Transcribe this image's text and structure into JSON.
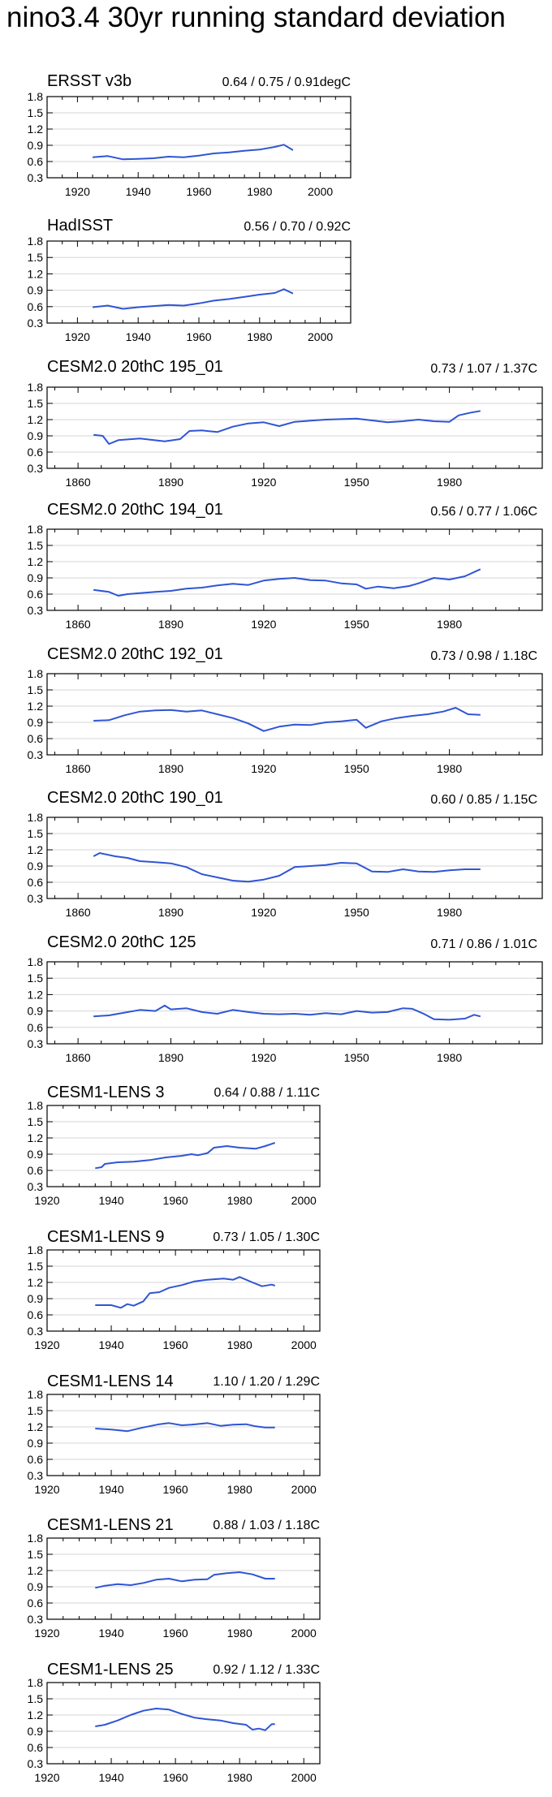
{
  "title": "nino3.4 30yr running standard deviation",
  "chart_data": [
    {
      "type": "line",
      "title": "ERSST v3b",
      "stats": "0.64 / 0.75 / 0.91degC",
      "xlim": [
        1910,
        2010
      ],
      "ylim": [
        0.3,
        1.8
      ],
      "xticks": [
        1920,
        1940,
        1960,
        1980,
        2000
      ],
      "yticks": [
        0.3,
        0.6,
        0.9,
        1.2,
        1.5,
        1.8
      ],
      "color": "#2f55d4",
      "x": [
        1925,
        1930,
        1935,
        1940,
        1945,
        1950,
        1955,
        1960,
        1965,
        1970,
        1975,
        1980,
        1985,
        1988,
        1991
      ],
      "y": [
        0.68,
        0.7,
        0.64,
        0.65,
        0.66,
        0.69,
        0.68,
        0.71,
        0.75,
        0.77,
        0.8,
        0.82,
        0.87,
        0.91,
        0.81
      ]
    },
    {
      "type": "line",
      "title": "HadISST",
      "stats": "0.56 / 0.70 / 0.92C",
      "xlim": [
        1910,
        2010
      ],
      "ylim": [
        0.3,
        1.8
      ],
      "xticks": [
        1920,
        1940,
        1960,
        1980,
        2000
      ],
      "yticks": [
        0.3,
        0.6,
        0.9,
        1.2,
        1.5,
        1.8
      ],
      "color": "#2f55d4",
      "x": [
        1925,
        1930,
        1935,
        1940,
        1945,
        1950,
        1955,
        1960,
        1965,
        1970,
        1975,
        1980,
        1985,
        1988,
        1991
      ],
      "y": [
        0.59,
        0.62,
        0.56,
        0.59,
        0.61,
        0.63,
        0.62,
        0.66,
        0.71,
        0.74,
        0.78,
        0.82,
        0.85,
        0.92,
        0.84
      ]
    },
    {
      "type": "line",
      "title": "CESM2.0 20thC 195_01",
      "stats": "0.73 / 1.07 / 1.37C",
      "xlim": [
        1850,
        2010
      ],
      "ylim": [
        0.3,
        1.8
      ],
      "xticks": [
        1860,
        1890,
        1920,
        1950,
        1980
      ],
      "yticks": [
        0.3,
        0.6,
        0.9,
        1.2,
        1.5,
        1.8
      ],
      "color": "#2f55d4",
      "x": [
        1865,
        1868,
        1870,
        1873,
        1880,
        1888,
        1893,
        1896,
        1900,
        1905,
        1910,
        1915,
        1920,
        1925,
        1930,
        1940,
        1950,
        1960,
        1965,
        1970,
        1975,
        1980,
        1983,
        1987,
        1990
      ],
      "y": [
        0.92,
        0.9,
        0.75,
        0.82,
        0.85,
        0.8,
        0.84,
        0.99,
        1.0,
        0.97,
        1.07,
        1.13,
        1.15,
        1.08,
        1.16,
        1.2,
        1.22,
        1.15,
        1.17,
        1.2,
        1.17,
        1.16,
        1.28,
        1.33,
        1.36
      ]
    },
    {
      "type": "line",
      "title": "CESM2.0 20thC 194_01",
      "stats": "0.56 / 0.77 / 1.06C",
      "xlim": [
        1850,
        2010
      ],
      "ylim": [
        0.3,
        1.8
      ],
      "xticks": [
        1860,
        1890,
        1920,
        1950,
        1980
      ],
      "yticks": [
        0.3,
        0.6,
        0.9,
        1.2,
        1.5,
        1.8
      ],
      "color": "#2f55d4",
      "x": [
        1865,
        1870,
        1873,
        1876,
        1880,
        1885,
        1890,
        1895,
        1900,
        1905,
        1910,
        1915,
        1920,
        1925,
        1930,
        1935,
        1940,
        1945,
        1950,
        1953,
        1957,
        1962,
        1967,
        1970,
        1975,
        1980,
        1985,
        1990
      ],
      "y": [
        0.68,
        0.64,
        0.57,
        0.6,
        0.62,
        0.64,
        0.66,
        0.7,
        0.72,
        0.76,
        0.79,
        0.77,
        0.85,
        0.88,
        0.9,
        0.86,
        0.85,
        0.8,
        0.78,
        0.7,
        0.74,
        0.71,
        0.75,
        0.8,
        0.9,
        0.87,
        0.93,
        1.06
      ]
    },
    {
      "type": "line",
      "title": "CESM2.0 20thC 192_01",
      "stats": "0.73 / 0.98 / 1.18C",
      "xlim": [
        1850,
        2010
      ],
      "ylim": [
        0.3,
        1.8
      ],
      "xticks": [
        1860,
        1890,
        1920,
        1950,
        1980
      ],
      "yticks": [
        0.3,
        0.6,
        0.9,
        1.2,
        1.5,
        1.8
      ],
      "color": "#2f55d4",
      "x": [
        1865,
        1870,
        1875,
        1880,
        1885,
        1890,
        1895,
        1900,
        1905,
        1910,
        1915,
        1920,
        1925,
        1930,
        1935,
        1940,
        1945,
        1950,
        1953,
        1958,
        1963,
        1968,
        1973,
        1978,
        1982,
        1986,
        1990
      ],
      "y": [
        0.93,
        0.94,
        1.03,
        1.1,
        1.12,
        1.13,
        1.1,
        1.12,
        1.05,
        0.98,
        0.88,
        0.74,
        0.82,
        0.86,
        0.85,
        0.9,
        0.92,
        0.95,
        0.8,
        0.92,
        0.98,
        1.02,
        1.05,
        1.1,
        1.17,
        1.05,
        1.04
      ]
    },
    {
      "type": "line",
      "title": "CESM2.0 20thC 190_01",
      "stats": "0.60 / 0.85 / 1.15C",
      "xlim": [
        1850,
        2010
      ],
      "ylim": [
        0.3,
        1.8
      ],
      "xticks": [
        1860,
        1890,
        1920,
        1950,
        1980
      ],
      "yticks": [
        0.3,
        0.6,
        0.9,
        1.2,
        1.5,
        1.8
      ],
      "color": "#2f55d4",
      "x": [
        1865,
        1867,
        1872,
        1876,
        1880,
        1885,
        1890,
        1895,
        1900,
        1905,
        1910,
        1915,
        1920,
        1925,
        1930,
        1935,
        1940,
        1945,
        1950,
        1955,
        1960,
        1965,
        1970,
        1975,
        1980,
        1985,
        1990
      ],
      "y": [
        1.08,
        1.14,
        1.08,
        1.05,
        0.99,
        0.97,
        0.95,
        0.88,
        0.75,
        0.69,
        0.63,
        0.61,
        0.65,
        0.72,
        0.88,
        0.9,
        0.92,
        0.96,
        0.95,
        0.8,
        0.79,
        0.84,
        0.8,
        0.79,
        0.82,
        0.84,
        0.84
      ]
    },
    {
      "type": "line",
      "title": "CESM2.0 20thC 125",
      "stats": "0.71 / 0.86 / 1.01C",
      "xlim": [
        1850,
        2010
      ],
      "ylim": [
        0.3,
        1.8
      ],
      "xticks": [
        1860,
        1890,
        1920,
        1950,
        1980
      ],
      "yticks": [
        0.3,
        0.6,
        0.9,
        1.2,
        1.5,
        1.8
      ],
      "color": "#2f55d4",
      "x": [
        1865,
        1870,
        1875,
        1880,
        1885,
        1888,
        1890,
        1895,
        1900,
        1905,
        1910,
        1915,
        1920,
        1925,
        1930,
        1935,
        1940,
        1945,
        1950,
        1955,
        1960,
        1965,
        1968,
        1972,
        1975,
        1980,
        1985,
        1988,
        1990
      ],
      "y": [
        0.8,
        0.82,
        0.87,
        0.92,
        0.9,
        1.0,
        0.93,
        0.95,
        0.88,
        0.85,
        0.92,
        0.88,
        0.85,
        0.84,
        0.85,
        0.83,
        0.86,
        0.84,
        0.9,
        0.87,
        0.88,
        0.95,
        0.94,
        0.84,
        0.75,
        0.74,
        0.76,
        0.83,
        0.8
      ]
    },
    {
      "type": "line",
      "title": "CESM1-LENS 3",
      "stats": "0.64 / 0.88 / 1.11C",
      "xlim": [
        1920,
        2005
      ],
      "ylim": [
        0.3,
        1.8
      ],
      "xticks": [
        1920,
        1940,
        1960,
        1980,
        2000
      ],
      "yticks": [
        0.3,
        0.6,
        0.9,
        1.2,
        1.5,
        1.8
      ],
      "color": "#2f55d4",
      "x": [
        1935,
        1937,
        1938,
        1942,
        1947,
        1952,
        1957,
        1962,
        1965,
        1967,
        1970,
        1972,
        1976,
        1980,
        1985,
        1988,
        1990,
        1991
      ],
      "y": [
        0.64,
        0.66,
        0.72,
        0.75,
        0.76,
        0.79,
        0.84,
        0.87,
        0.9,
        0.88,
        0.92,
        1.02,
        1.05,
        1.02,
        1.0,
        1.05,
        1.09,
        1.11
      ]
    },
    {
      "type": "line",
      "title": "CESM1-LENS 9",
      "stats": "0.73 / 1.05 / 1.30C",
      "xlim": [
        1920,
        2005
      ],
      "ylim": [
        0.3,
        1.8
      ],
      "xticks": [
        1920,
        1940,
        1960,
        1980,
        2000
      ],
      "yticks": [
        0.3,
        0.6,
        0.9,
        1.2,
        1.5,
        1.8
      ],
      "color": "#2f55d4",
      "x": [
        1935,
        1940,
        1943,
        1945,
        1947,
        1950,
        1952,
        1955,
        1958,
        1962,
        1966,
        1970,
        1975,
        1978,
        1980,
        1984,
        1987,
        1990,
        1991
      ],
      "y": [
        0.78,
        0.78,
        0.73,
        0.8,
        0.77,
        0.85,
        1.0,
        1.02,
        1.1,
        1.15,
        1.22,
        1.25,
        1.27,
        1.25,
        1.3,
        1.2,
        1.13,
        1.16,
        1.14
      ]
    },
    {
      "type": "line",
      "title": "CESM1-LENS 14",
      "stats": "1.10 / 1.20 / 1.29C",
      "xlim": [
        1920,
        2005
      ],
      "ylim": [
        0.3,
        1.8
      ],
      "xticks": [
        1920,
        1940,
        1960,
        1980,
        2000
      ],
      "yticks": [
        0.3,
        0.6,
        0.9,
        1.2,
        1.5,
        1.8
      ],
      "color": "#2f55d4",
      "x": [
        1935,
        1940,
        1945,
        1950,
        1955,
        1958,
        1962,
        1965,
        1970,
        1974,
        1978,
        1982,
        1985,
        1988,
        1991
      ],
      "y": [
        1.17,
        1.15,
        1.12,
        1.19,
        1.25,
        1.27,
        1.23,
        1.24,
        1.27,
        1.22,
        1.24,
        1.25,
        1.21,
        1.19,
        1.19
      ]
    },
    {
      "type": "line",
      "title": "CESM1-LENS 21",
      "stats": "0.88 / 1.03 / 1.18C",
      "xlim": [
        1920,
        2005
      ],
      "ylim": [
        0.3,
        1.8
      ],
      "xticks": [
        1920,
        1940,
        1960,
        1980,
        2000
      ],
      "yticks": [
        0.3,
        0.6,
        0.9,
        1.2,
        1.5,
        1.8
      ],
      "color": "#2f55d4",
      "x": [
        1935,
        1938,
        1942,
        1946,
        1950,
        1954,
        1958,
        1962,
        1966,
        1970,
        1972,
        1976,
        1980,
        1984,
        1988,
        1991
      ],
      "y": [
        0.88,
        0.92,
        0.95,
        0.93,
        0.97,
        1.03,
        1.05,
        1.0,
        1.03,
        1.04,
        1.12,
        1.15,
        1.17,
        1.13,
        1.05,
        1.05
      ]
    },
    {
      "type": "line",
      "title": "CESM1-LENS 25",
      "stats": "0.92 / 1.12 / 1.33C",
      "xlim": [
        1920,
        2005
      ],
      "ylim": [
        0.3,
        1.8
      ],
      "xticks": [
        1920,
        1940,
        1960,
        1980,
        2000
      ],
      "yticks": [
        0.3,
        0.6,
        0.9,
        1.2,
        1.5,
        1.8
      ],
      "color": "#2f55d4",
      "x": [
        1935,
        1938,
        1942,
        1946,
        1950,
        1954,
        1958,
        1962,
        1966,
        1970,
        1974,
        1978,
        1982,
        1984,
        1986,
        1988,
        1990,
        1991
      ],
      "y": [
        0.99,
        1.02,
        1.1,
        1.2,
        1.28,
        1.32,
        1.3,
        1.22,
        1.15,
        1.12,
        1.1,
        1.05,
        1.02,
        0.93,
        0.95,
        0.92,
        1.03,
        1.03
      ]
    }
  ]
}
